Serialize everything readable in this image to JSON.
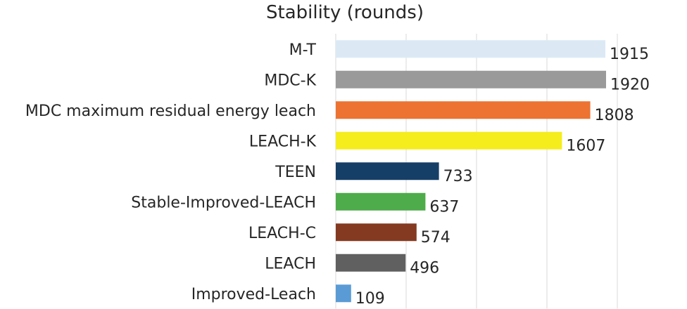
{
  "chart_data": {
    "type": "bar",
    "orientation": "horizontal",
    "title": "Stability (rounds)",
    "xlabel": "",
    "ylabel": "",
    "xlim": [
      0,
      2000
    ],
    "grid": true,
    "legend": "none",
    "categories": [
      "M-T",
      "MDC-K",
      "MDC maximum residual energy leach",
      "LEACH-K",
      "TEEN",
      "Stable-Improved-LEACH",
      "LEACH-C",
      "LEACH",
      "Improved-Leach"
    ],
    "values": [
      1915,
      1920,
      1808,
      1607,
      733,
      637,
      574,
      496,
      109
    ],
    "colors": [
      "#dce9f5",
      "#9a9a9a",
      "#ec7332",
      "#f5ed1c",
      "#163f67",
      "#4eac4a",
      "#843a21",
      "#606060",
      "#5a9bd5"
    ]
  }
}
